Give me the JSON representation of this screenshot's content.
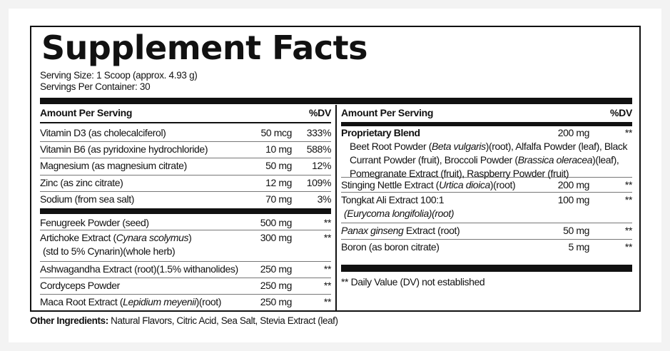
{
  "title": "Supplement Facts",
  "serving_size": "Serving Size: 1 Scoop (approx. 4.93 g)",
  "servings_per_container": "Servings Per Container: 30",
  "header": {
    "amount": "Amount Per Serving",
    "dv": "%DV"
  },
  "left_rows": [
    {
      "name": [
        {
          "t": "Vitamin D3 (as cholecalciferol)"
        }
      ],
      "amount": "50 mcg",
      "dv": "333%"
    },
    {
      "name": [
        {
          "t": "Vitamin B6 (as pyridoxine hydrochloride)"
        }
      ],
      "amount": "10 mg",
      "dv": "588%"
    },
    {
      "name": [
        {
          "t": "Magnesium (as magnesium citrate)"
        }
      ],
      "amount": "50 mg",
      "dv": "12%"
    },
    {
      "name": [
        {
          "t": "Zinc (as zinc citrate)"
        }
      ],
      "amount": "12 mg",
      "dv": "109%"
    },
    {
      "name": [
        {
          "t": "Sodium (from sea salt)"
        }
      ],
      "amount": "70 mg",
      "dv": "3%"
    },
    {
      "name": [
        {
          "t": "Fenugreek Powder (seed)"
        }
      ],
      "amount": "500 mg",
      "dv": "**"
    },
    {
      "name": [
        {
          "t": "Artichoke Extract ("
        },
        {
          "t": "Cynara scolymus",
          "i": true
        },
        {
          "t": ")"
        }
      ],
      "name2": [
        {
          "t": "(std to 5% Cynarin)(whole herb)"
        }
      ],
      "amount": "300 mg",
      "dv": "**"
    },
    {
      "name": [
        {
          "t": "Ashwagandha Extract (root)(1.5% withanolides)"
        }
      ],
      "amount": "250 mg",
      "dv": "**"
    },
    {
      "name": [
        {
          "t": "Cordyceps Powder"
        }
      ],
      "amount": "250 mg",
      "dv": "**"
    },
    {
      "name": [
        {
          "t": "Maca Root Extract ("
        },
        {
          "t": "Lepidium meyenii",
          "i": true
        },
        {
          "t": ")(root)"
        }
      ],
      "amount": "250 mg",
      "dv": "**"
    }
  ],
  "right_rows": [
    {
      "name": [
        {
          "t": "Proprietary Blend",
          "b": true
        }
      ],
      "amount": "200 mg",
      "dv": "**",
      "sub": [
        [
          {
            "t": "Beet Root Powder ("
          },
          {
            "t": "Beta vulgaris",
            "i": true
          },
          {
            "t": ")(root), Alfalfa Powder (leaf), Black"
          }
        ],
        [
          {
            "t": "Currant Powder (fruit), Broccoli Powder ("
          },
          {
            "t": "Brassica oleracea",
            "i": true
          },
          {
            "t": ")(leaf),"
          }
        ],
        [
          {
            "t": "Pomegranate Extract (fruit), Raspberry Powder (fruit)"
          }
        ]
      ]
    },
    {
      "name": [
        {
          "t": "Stinging Nettle Extract ("
        },
        {
          "t": "Urtica dioica",
          "i": true
        },
        {
          "t": ")(root)"
        }
      ],
      "amount": "200 mg",
      "dv": "**"
    },
    {
      "name": [
        {
          "t": "Tongkat Ali Extract 100:1"
        }
      ],
      "name2": [
        {
          "t": "(Eurycoma longifolia)(root)",
          "i": true
        }
      ],
      "amount": "100 mg",
      "dv": "**"
    },
    {
      "name": [
        {
          "t": "Panax ginseng",
          "i": true
        },
        {
          "t": " Extract (root)"
        }
      ],
      "amount": "50 mg",
      "dv": "**"
    },
    {
      "name": [
        {
          "t": "Boron (as boron citrate)"
        }
      ],
      "amount": "5 mg",
      "dv": "**"
    }
  ],
  "footnote": "** Daily Value (DV) not established",
  "other_ingredients": {
    "label": "Other Ingredients:",
    "value": " Natural Flavors, Citric Acid, Sea Salt, Stevia Extract (leaf)"
  }
}
